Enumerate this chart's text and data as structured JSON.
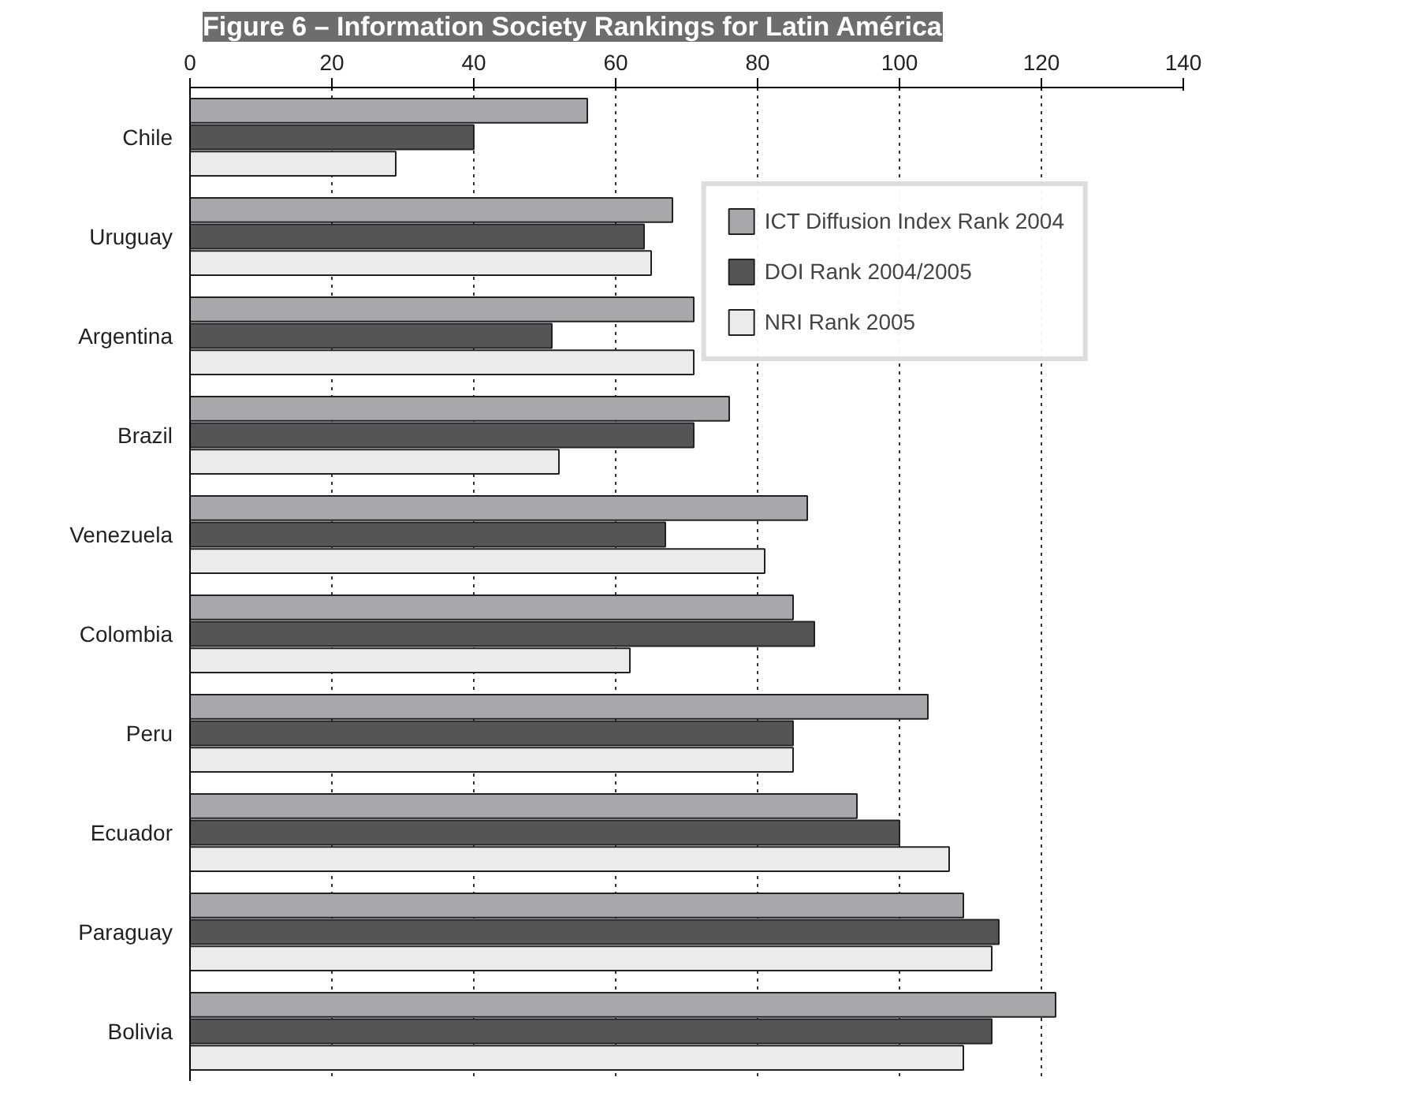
{
  "chart_data": {
    "type": "bar",
    "orientation": "horizontal",
    "title": "Figure 6 – Information Society Rankings for Latin América",
    "categories": [
      "Chile",
      "Uruguay",
      "Argentina",
      "Brazil",
      "Venezuela",
      "Colombia",
      "Peru",
      "Ecuador",
      "Paraguay",
      "Bolivia"
    ],
    "series": [
      {
        "name": "ICT Diffusion Index Rank 2004",
        "color": "#a7a8ab",
        "values": [
          56,
          68,
          71,
          76,
          87,
          85,
          104,
          94,
          109,
          122
        ]
      },
      {
        "name": "DOI Rank 2004/2005",
        "color": "#545557",
        "values": [
          40,
          64,
          51,
          71,
          67,
          88,
          85,
          100,
          114,
          113
        ]
      },
      {
        "name": "NRI Rank 2005",
        "color": "#ebebed",
        "values": [
          29,
          65,
          71,
          52,
          81,
          62,
          85,
          107,
          113,
          109
        ]
      }
    ],
    "xlim": [
      0,
      140
    ],
    "xticks": [
      0,
      20,
      40,
      60,
      80,
      100,
      120,
      140
    ],
    "grid": "x",
    "legend": "top right"
  }
}
